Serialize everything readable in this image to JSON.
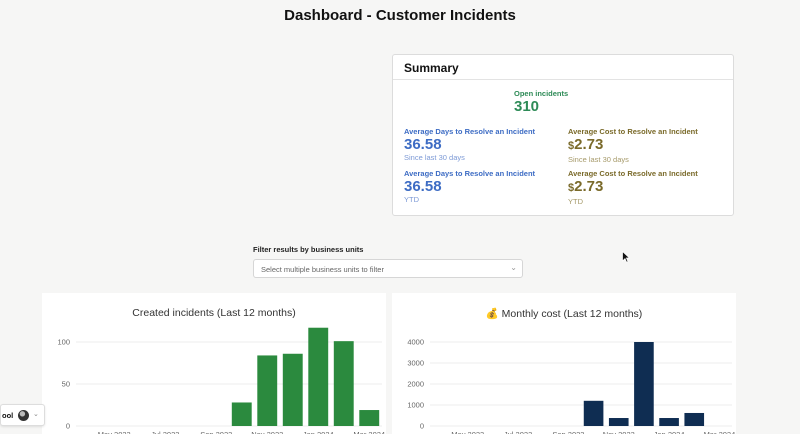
{
  "page": {
    "title": "Dashboard - Customer Incidents"
  },
  "summary": {
    "title": "Summary",
    "open": {
      "label": "Open incidents",
      "value": "310",
      "color": "#2e8b57"
    },
    "avg_days_30": {
      "label": "Average Days to Resolve an Incident",
      "value": "36.58",
      "sub": "Since last 30 days",
      "color": "#3d6cc4"
    },
    "avg_cost_30": {
      "label": "Average Cost to Resolve an Incident",
      "currency": "$",
      "value": "2.73",
      "sub": "Since last 30 days",
      "color": "#7a6a2a"
    },
    "avg_days_ytd": {
      "label": "Average Days to Resolve an Incident",
      "value": "36.58",
      "sub": "YTD",
      "color": "#3d6cc4"
    },
    "avg_cost_ytd": {
      "label": "Average Cost to Resolve an Incident",
      "currency": "$",
      "value": "2.73",
      "sub": "YTD",
      "color": "#7a6a2a"
    }
  },
  "filter": {
    "label": "Filter results by business units",
    "placeholder": "Select multiple business units to filter",
    "chevron_icon": "chevron-down-icon"
  },
  "user_chip": {
    "text": "ool",
    "avatar_icon": "avatar",
    "chevron_icon": "chevron-down-icon"
  },
  "chart_data": [
    {
      "type": "bar",
      "title": "Created incidents (Last 12 months)",
      "color": "#2b8a3e",
      "categories": [
        "Apr 2023",
        "May 2023",
        "Jun 2023",
        "Jul 2023",
        "Aug 2023",
        "Sep 2023",
        "Oct 2023",
        "Nov 2023",
        "Dec 2023",
        "Jan 2024",
        "Feb 2024",
        "Mar 2024"
      ],
      "values": [
        0,
        0,
        0,
        0,
        0,
        0,
        28,
        84,
        86,
        117,
        101,
        19
      ],
      "y_ticks": [
        0,
        50,
        100
      ],
      "x_tick_labels": [
        "May 2023",
        "Jul 2023",
        "Sep 2023",
        "Nov 2023",
        "Jan 2024",
        "Mar 2024"
      ],
      "ylim": [
        0,
        140
      ]
    },
    {
      "type": "bar",
      "title": "💰 Monthly cost (Last 12 months)",
      "color": "#0f2d52",
      "categories": [
        "Apr 2023",
        "May 2023",
        "Jun 2023",
        "Jul 2023",
        "Aug 2023",
        "Sep 2023",
        "Oct 2023",
        "Nov 2023",
        "Dec 2023",
        "Jan 2024",
        "Feb 2024",
        "Mar 2024"
      ],
      "values": [
        0,
        0,
        0,
        0,
        0,
        0,
        1200,
        380,
        4000,
        380,
        620,
        0
      ],
      "y_ticks": [
        0,
        1000,
        2000,
        3000,
        4000
      ],
      "x_tick_labels": [
        "May 2023",
        "Jul 2023",
        "Sep 2023",
        "Nov 2023",
        "Jan 2024",
        "Mar 2024"
      ],
      "ylim": [
        0,
        4400
      ]
    }
  ]
}
